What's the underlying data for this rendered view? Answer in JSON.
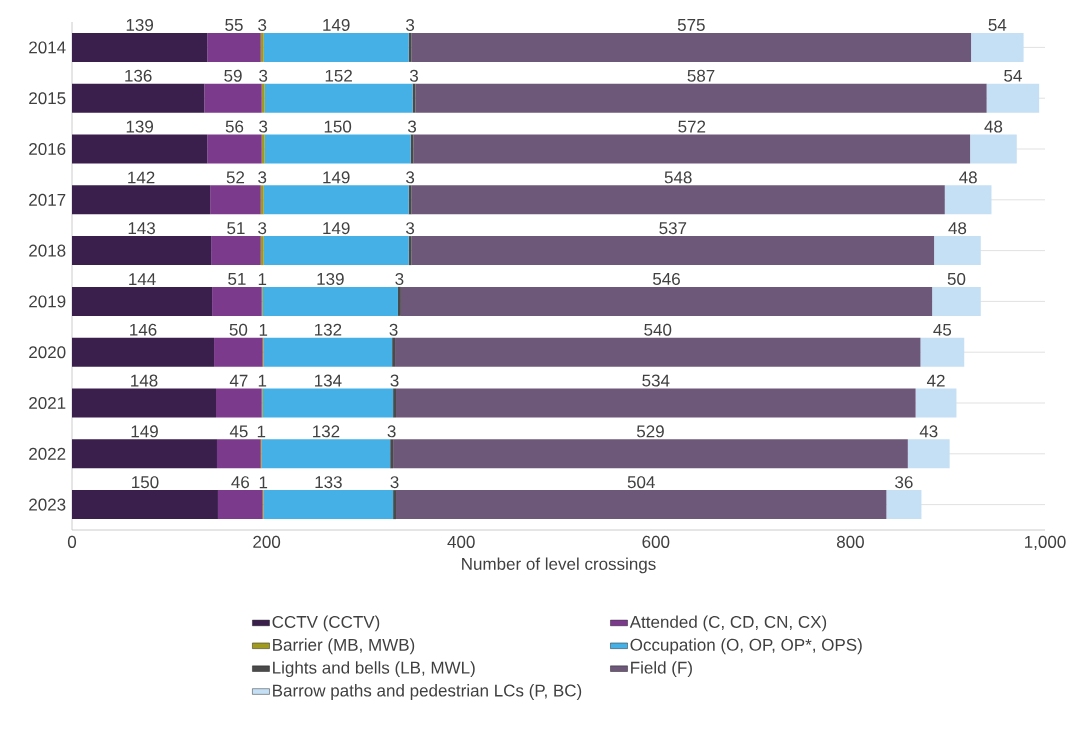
{
  "chart_data": {
    "type": "bar",
    "orientation": "horizontal",
    "stacked": true,
    "data_labels": true,
    "grid": "y",
    "legend": "bottom",
    "xlabel": "Number of level crossings",
    "categories": [
      "2014",
      "2015",
      "2016",
      "2017",
      "2018",
      "2019",
      "2020",
      "2021",
      "2022",
      "2023"
    ],
    "xlim": [
      0,
      1000
    ],
    "xticks": [
      0,
      200,
      400,
      600,
      800,
      {
        "value": 1000,
        "label": "1,000"
      }
    ],
    "series": [
      {
        "name": "CCTV (CCTV)",
        "color": "#3a1f4d",
        "values": [
          139,
          136,
          139,
          142,
          143,
          144,
          146,
          148,
          149,
          150
        ]
      },
      {
        "name": "Attended (C, CD, CN, CX)",
        "color": "#7b3a8c",
        "values": [
          55,
          59,
          56,
          52,
          51,
          51,
          50,
          47,
          45,
          46
        ]
      },
      {
        "name": "Barrier (MB, MWB)",
        "color": "#a09a1e",
        "values": [
          3,
          3,
          3,
          3,
          3,
          1,
          1,
          1,
          1,
          1
        ]
      },
      {
        "name": "Occupation (O, OP, OP*, OPS)",
        "color": "#45b0e5",
        "values": [
          149,
          152,
          150,
          149,
          149,
          139,
          132,
          134,
          132,
          133
        ]
      },
      {
        "name": "Lights and bells (LB, MWL)",
        "color": "#4a4a4a",
        "values": [
          3,
          3,
          3,
          3,
          3,
          3,
          3,
          3,
          3,
          3
        ]
      },
      {
        "name": "Field (F)",
        "color": "#6e587a",
        "values": [
          575,
          587,
          572,
          548,
          537,
          546,
          540,
          534,
          529,
          504
        ]
      },
      {
        "name": "Barrow paths and pedestrian LCs (P, BC)",
        "color": "#c5e0f5",
        "values": [
          54,
          54,
          48,
          48,
          48,
          50,
          45,
          42,
          43,
          36
        ]
      }
    ]
  }
}
